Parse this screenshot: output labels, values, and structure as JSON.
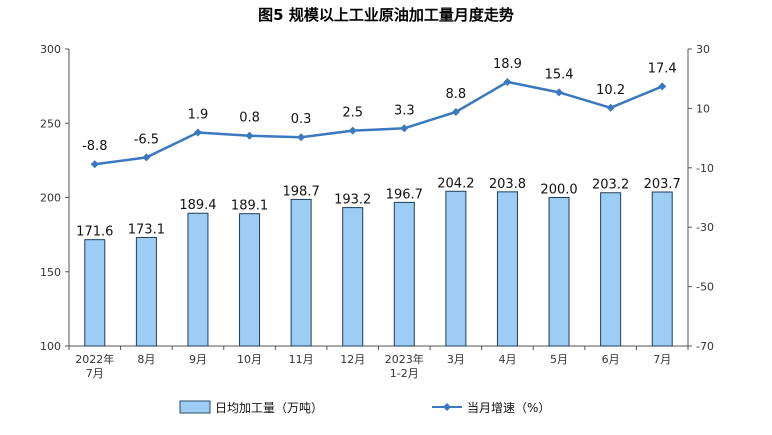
{
  "chart_data": {
    "type": "bar+line",
    "title": "图5  规模以上工业原油加工量月度走势",
    "categories": [
      [
        "2022年",
        "7月"
      ],
      [
        "8月"
      ],
      [
        "9月"
      ],
      [
        "10月"
      ],
      [
        "11月"
      ],
      [
        "12月"
      ],
      [
        "2023年",
        "1-2月"
      ],
      [
        "3月"
      ],
      [
        "4月"
      ],
      [
        "5月"
      ],
      [
        "6月"
      ],
      [
        "7月"
      ]
    ],
    "series": [
      {
        "name": "日均加工量（万吨）",
        "type": "bar",
        "axis": "left",
        "color": "#9dcdf5",
        "values": [
          171.6,
          173.1,
          189.4,
          189.1,
          198.7,
          193.2,
          196.7,
          204.2,
          203.8,
          200.0,
          203.2,
          203.7
        ],
        "labels": [
          "171.6",
          "173.1",
          "189.4",
          "189.1",
          "198.7",
          "193.2",
          "196.7",
          "204.2",
          "203.8",
          "200.0",
          "203.2",
          "203.7"
        ]
      },
      {
        "name": "当月增速（%）",
        "type": "line",
        "axis": "right",
        "color": "#3a78c0",
        "values": [
          -8.8,
          -6.5,
          1.9,
          0.8,
          0.3,
          2.5,
          3.3,
          8.8,
          18.9,
          15.4,
          10.2,
          17.4
        ],
        "labels": [
          "-8.8",
          "-6.5",
          "1.9",
          "0.8",
          "0.3",
          "2.5",
          "3.3",
          "8.8",
          "18.9",
          "15.4",
          "10.2",
          "17.4"
        ]
      }
    ],
    "y_left": {
      "min": 100,
      "max": 300,
      "ticks": [
        "300",
        "250",
        "200",
        "150",
        "100"
      ],
      "tick_values": [
        300,
        250,
        200,
        150,
        100
      ]
    },
    "y_right": {
      "min": -70,
      "max": 30,
      "ticks": [
        "30",
        "10",
        "-10",
        "-30",
        "-50",
        "-70"
      ],
      "tick_values": [
        30,
        10,
        -10,
        -30,
        -50,
        -70
      ]
    },
    "grid": false,
    "legend_position": "bottom"
  }
}
